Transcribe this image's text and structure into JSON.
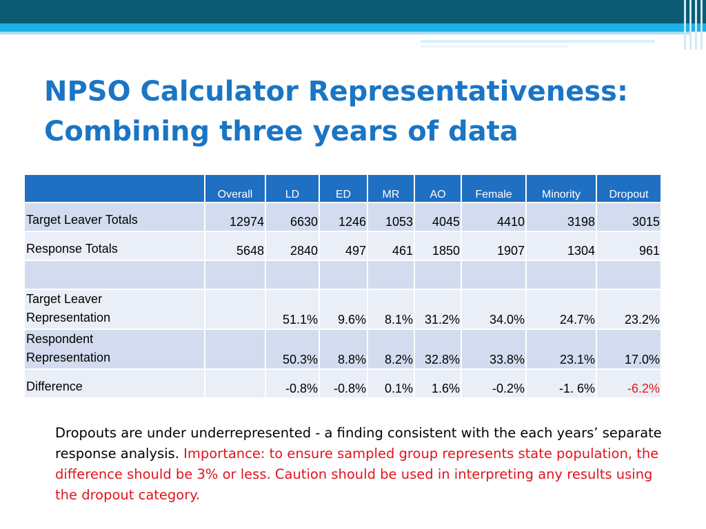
{
  "slide": {
    "title_line1": "NPSO Calculator Representativeness:",
    "title_line2": "Combining three years of data"
  },
  "table": {
    "corner": "",
    "columns": [
      "Overall",
      "LD",
      "ED",
      "MR",
      "AO",
      "Female",
      "Minority",
      "Dropout"
    ],
    "rows": [
      {
        "label": "Target Leaver Totals",
        "cells": [
          "12974",
          "6630",
          "1246",
          "1053",
          "4045",
          "4410",
          "3198",
          "3015"
        ]
      },
      {
        "label": "Response Totals",
        "cells": [
          "5648",
          "2840",
          "497",
          "461",
          "1850",
          "1907",
          "1304",
          "961"
        ]
      },
      {
        "label": "",
        "cells": [
          "",
          "",
          "",
          "",
          "",
          "",
          "",
          ""
        ]
      },
      {
        "label_line1": "Target Leaver",
        "label_line2": "Representation",
        "cells": [
          "",
          "51.1%",
          "9.6%",
          "8.1%",
          "31.2%",
          "34.0%",
          "24.7%",
          "23.2%"
        ]
      },
      {
        "label_line1": "Respondent",
        "label_line2": "Representation",
        "cells": [
          "",
          "50.3%",
          "8.8%",
          "8.2%",
          "32.8%",
          "33.8%",
          "23.1%",
          "17.0%"
        ]
      },
      {
        "label": "Difference",
        "cells": [
          "",
          "-0.8%",
          "-0.8%",
          "0.1%",
          "1.6%",
          "-0.2%",
          "-1. 6%",
          "-6.2%"
        ]
      }
    ]
  },
  "note": {
    "black_text": "Dropouts are under underrepresented  - a finding consistent with the each years’ separate response analysis.",
    "red_text": "Importance: to ensure sampled group represents state population, the difference should be 3% or less.  Caution should be used in interpreting any results using the dropout category."
  },
  "colors": {
    "title": "#1a75c4",
    "header_bg": "#1f6fc2",
    "row_dark": "#d3dcee",
    "row_light": "#eaeef6",
    "highlight_red": "#e01a1a",
    "banner_dark": "#0b5c73",
    "banner_bright": "#1bb0e6"
  }
}
